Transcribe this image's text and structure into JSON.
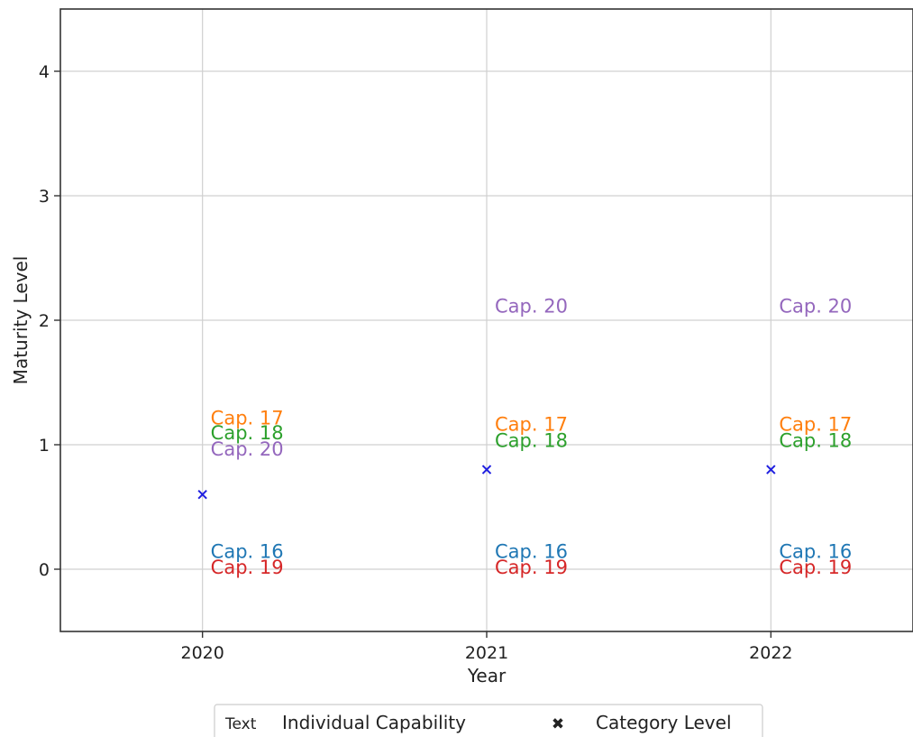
{
  "chart_data": {
    "type": "scatter",
    "xlabel": "Year",
    "ylabel": "Maturity Level",
    "xlim": [
      2019.5,
      2022.5
    ],
    "ylim": [
      -0.5,
      4.5
    ],
    "x_ticks": [
      2020,
      2021,
      2022
    ],
    "x_tick_labels": [
      "2020",
      "2021",
      "2022"
    ],
    "y_ticks": [
      0,
      1,
      2,
      3,
      4
    ],
    "y_tick_labels": [
      "0",
      "1",
      "2",
      "3",
      "4"
    ],
    "grid": true,
    "category_level": {
      "name": "Category Level",
      "color": "#1f1fe0",
      "marker": "x",
      "points": [
        {
          "x": 2020,
          "y": 0.6
        },
        {
          "x": 2021,
          "y": 0.8
        },
        {
          "x": 2022,
          "y": 0.8
        }
      ]
    },
    "capabilities": [
      {
        "label": "Cap. 16",
        "color": "#1f77b4",
        "points": [
          {
            "x": 2020,
            "y": 0.15
          },
          {
            "x": 2021,
            "y": 0.15
          },
          {
            "x": 2022,
            "y": 0.15
          }
        ]
      },
      {
        "label": "Cap. 17",
        "color": "#ff7f0e",
        "points": [
          {
            "x": 2020,
            "y": 1.22
          },
          {
            "x": 2021,
            "y": 1.17
          },
          {
            "x": 2022,
            "y": 1.17
          }
        ]
      },
      {
        "label": "Cap. 18",
        "color": "#2ca02c",
        "points": [
          {
            "x": 2020,
            "y": 1.1
          },
          {
            "x": 2021,
            "y": 1.04
          },
          {
            "x": 2022,
            "y": 1.04
          }
        ]
      },
      {
        "label": "Cap. 19",
        "color": "#d62728",
        "points": [
          {
            "x": 2020,
            "y": 0.02
          },
          {
            "x": 2021,
            "y": 0.02
          },
          {
            "x": 2022,
            "y": 0.02
          }
        ]
      },
      {
        "label": "Cap. 20",
        "color": "#9467bd",
        "points": [
          {
            "x": 2020,
            "y": 0.97
          },
          {
            "x": 2021,
            "y": 2.12
          },
          {
            "x": 2022,
            "y": 2.12
          }
        ]
      }
    ],
    "legend": {
      "placement": "bottom-center",
      "entries": [
        {
          "sample": "Text",
          "label": "Individual Capability"
        },
        {
          "sample": "✖",
          "label": "Category Level",
          "color": "#1f1fe0"
        }
      ]
    }
  }
}
